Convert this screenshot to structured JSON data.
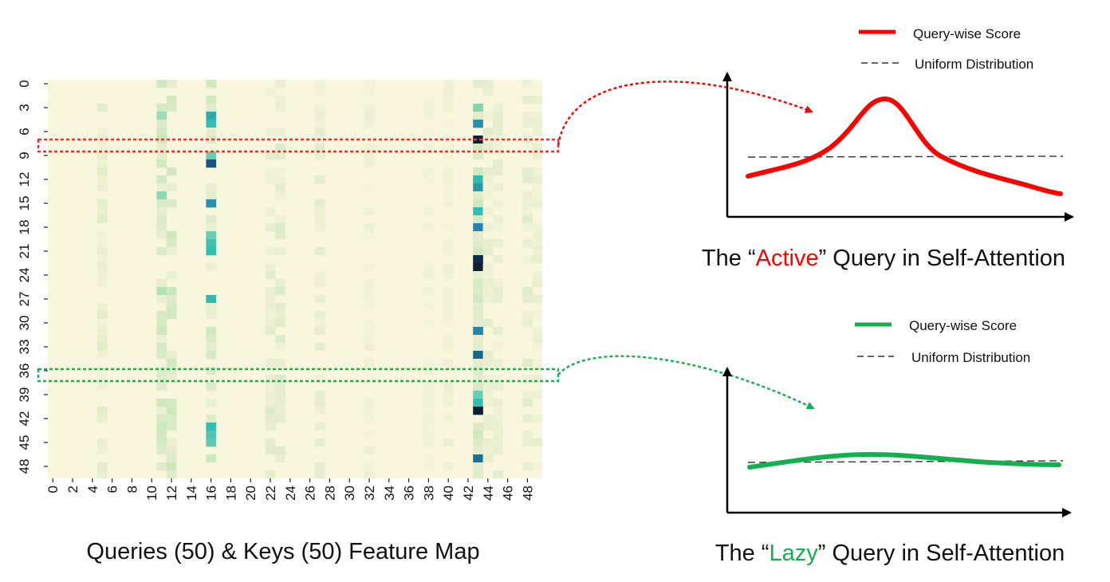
{
  "heatmap": {
    "title": "Queries (50) & Keys (50) Feature Map",
    "y_tick_labels": [
      "0",
      "3",
      "6",
      "9",
      "12",
      "15",
      "18",
      "21",
      "24",
      "27",
      "30",
      "33",
      "36",
      "39",
      "42",
      "45",
      "48"
    ],
    "x_tick_labels": [
      "0",
      "2",
      "4",
      "6",
      "8",
      "10",
      "12",
      "14",
      "16",
      "18",
      "20",
      "22",
      "24",
      "26",
      "28",
      "30",
      "32",
      "34",
      "36",
      "38",
      "40",
      "42",
      "44",
      "46",
      "48"
    ],
    "highlight_rows": [
      {
        "row": 8,
        "color": "#ff2a2a"
      },
      {
        "row": 35,
        "color": "#1aaf50"
      }
    ]
  },
  "panels": [
    {
      "id": "active",
      "legend": [
        {
          "label": "Query-wise Score",
          "color": "#ff0000",
          "style": "solid"
        },
        {
          "label": "Uniform Distribution",
          "color": "#333333",
          "style": "dashed"
        }
      ],
      "caption": {
        "before": "The “",
        "highlight": "Active",
        "after": "” Query in Self-Attention",
        "highlight_color": "#ff0000"
      }
    },
    {
      "id": "lazy",
      "legend": [
        {
          "label": "Query-wise Score",
          "color": "#13b04f",
          "style": "solid"
        },
        {
          "label": "Uniform Distribution",
          "color": "#333333",
          "style": "dashed"
        }
      ],
      "caption": {
        "before": "The “",
        "highlight": "Lazy",
        "after": "” Query in Self-Attention",
        "highlight_color": "#13b04f"
      }
    }
  ]
}
